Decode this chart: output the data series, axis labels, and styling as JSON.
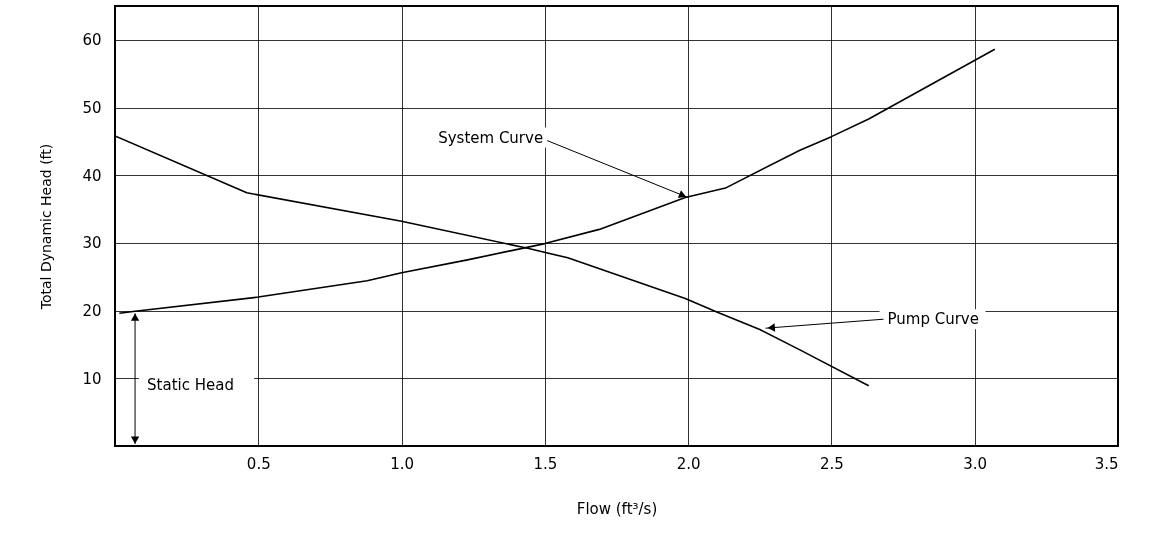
{
  "chart_data": {
    "type": "line",
    "xlabel": "Flow (ft³/s)",
    "ylabel": "Total Dynamic Head (ft)",
    "xlim": [
      0,
      3.5
    ],
    "xticks": [
      0.5,
      {
        "value": 1,
        "label": "1.0"
      },
      1.5,
      {
        "value": 2,
        "label": "2.0"
      },
      2.5,
      {
        "value": 3,
        "label": "3.0"
      },
      3.5
    ],
    "ylim": [
      0,
      65
    ],
    "yticks": [
      10,
      20,
      30,
      40,
      50,
      60
    ],
    "grid": true,
    "marker": "none",
    "line_style": "solid",
    "series": [
      {
        "color": "#000000",
        "x": [
          0.015,
          0.07,
          0.5,
          0.88,
          1.0,
          1.23,
          1.5,
          1.69,
          1.99,
          2.13,
          2.39,
          2.5,
          2.63,
          3.07
        ],
        "values": [
          19.6,
          19.9,
          22.0,
          24.4,
          25.6,
          27.5,
          29.9,
          32.0,
          36.7,
          38.1,
          43.7,
          45.7,
          48.3,
          58.6
        ]
      },
      {
        "color": "#000000",
        "x": [
          0,
          0.46,
          1.0,
          1.44,
          1.58,
          1.99,
          2.1,
          2.25,
          2.39,
          2.63
        ],
        "values": [
          45.8,
          37.4,
          33.2,
          29.2,
          27.8,
          21.8,
          19.8,
          17.2,
          14.2,
          8.9
        ]
      }
    ],
    "annotations": [
      {
        "text": "System Curve",
        "x": 2.0,
        "y": 36.7
      },
      {
        "text": "Pump Curve",
        "x": 2.27,
        "y": 17.4
      },
      "Static Head"
    ]
  }
}
